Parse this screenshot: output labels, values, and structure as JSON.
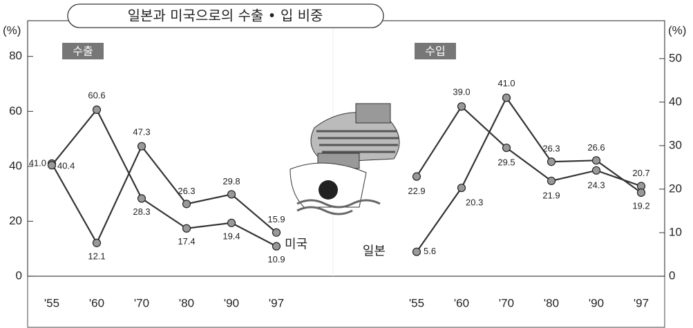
{
  "title": "일본과 미국으로의 수출 • 입 비중",
  "chart_data": [
    {
      "type": "line",
      "title": "수출",
      "y_label": "(%)",
      "categories": [
        "'55",
        "'60",
        "'70",
        "'80",
        "'90",
        "'97"
      ],
      "series": [
        {
          "name": "미국",
          "color": "#333333",
          "values": [
            41.0,
            12.1,
            47.3,
            26.3,
            29.8,
            15.9
          ],
          "value_labels": [
            "41.0",
            "12.1",
            "47.3",
            "26.3",
            "29.8",
            "15.9"
          ]
        },
        {
          "color": "#333333",
          "values": [
            40.4,
            60.6,
            28.3,
            17.4,
            19.4,
            10.9
          ],
          "value_labels": [
            "40.4",
            "60.6",
            "28.3",
            "17.4",
            "19.4",
            "10.9"
          ]
        }
      ],
      "ylim": [
        0,
        93
      ],
      "yticks": [
        0,
        20,
        40,
        60,
        80
      ],
      "axis_side": "left",
      "grid": false
    },
    {
      "type": "line",
      "title": "수입",
      "y_label": "(%)",
      "categories": [
        "'55",
        "'60",
        "'70",
        "'80",
        "'90",
        "'97"
      ],
      "series": [
        {
          "color": "#333333",
          "values": [
            22.9,
            39.0,
            29.5,
            21.9,
            24.3,
            20.7
          ],
          "value_labels": [
            "22.9",
            "39.0",
            "29.5",
            "21.9",
            "24.3",
            "20.7"
          ]
        },
        {
          "name": "일본",
          "color": "#333333",
          "values": [
            5.6,
            20.3,
            41.0,
            26.3,
            26.6,
            19.2
          ],
          "value_labels": [
            "5.6",
            "20.3",
            "41.0",
            "26.3",
            "26.6",
            "19.2"
          ]
        }
      ],
      "ylim": [
        0,
        58.7
      ],
      "yticks": [
        0,
        10,
        20,
        30,
        40,
        50
      ],
      "axis_side": "right",
      "grid": false
    }
  ]
}
